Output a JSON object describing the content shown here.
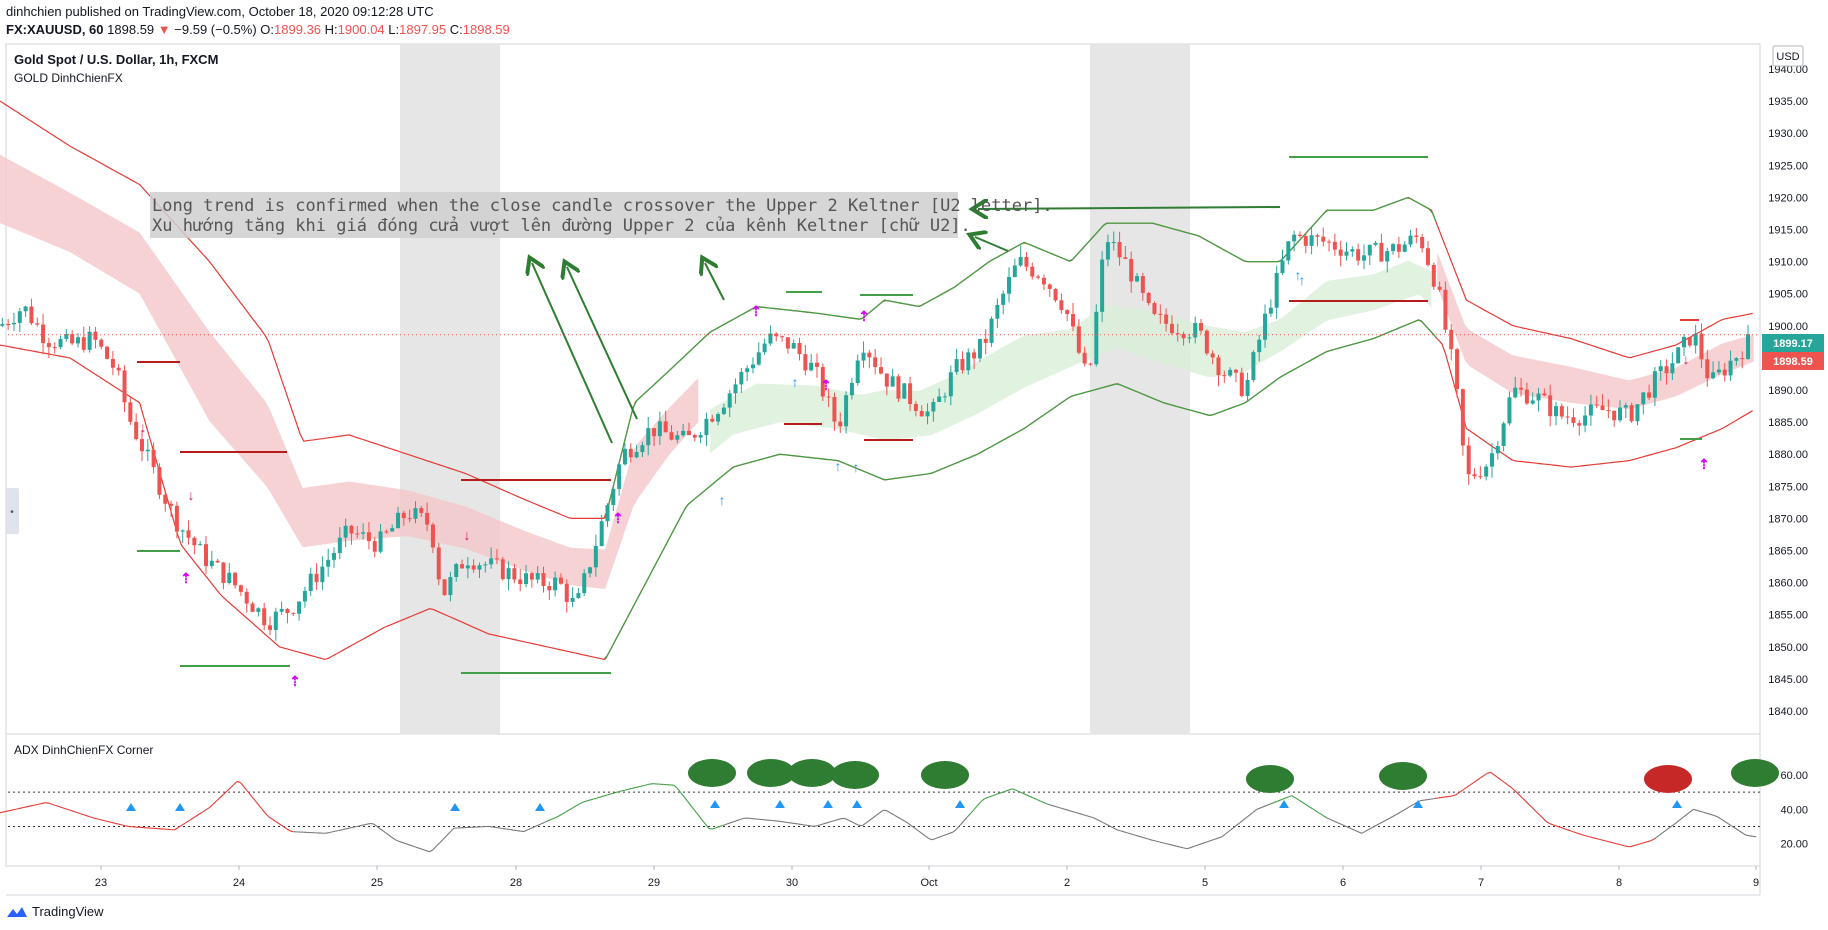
{
  "header": {
    "line1": "dinhchien published on TradingView.com, October 18, 2020 09:12:28 UTC",
    "symbol": "FX:XAUUSD, 60",
    "last": "1898.59",
    "change": "−9.59 (−0.5%)",
    "o_label": "O:",
    "o": "1899.36",
    "h_label": "H:",
    "h": "1900.04",
    "l_label": "L:",
    "l": "1897.95",
    "c_label": "C:",
    "c": "1898.59"
  },
  "main_pane": {
    "title": "Gold Spot / U.S. Dollar, 1h, FXCM",
    "indicator": "GOLD DinhChienFX",
    "currency": "USD",
    "annotation_line1": "Long trend is confirmed when the close candle crossover the Upper 2 Keltner [U2 letter].",
    "annotation_line2": "Xu hướng tăng khi giá đóng cửa vượt lên đường Upper 2 của kênh Keltner [chữ U2].",
    "price_badge_1": "1899.17",
    "price_badge_2": "1898.59"
  },
  "adx_pane": {
    "title": "ADX DinhChienFX Corner",
    "ticks": [
      "60.00",
      "40.00",
      "20.00"
    ]
  },
  "footer": {
    "brand": "TradingView"
  },
  "colors": {
    "up": "#26a69a",
    "down": "#ef5350",
    "band_red": "#e53935",
    "band_green": "#43a047",
    "fill_red": "#f4c7c9",
    "fill_green": "#d9efd9",
    "signal_buy": "#2196f3",
    "signal_exit": "#d500f9",
    "bubble_buy": "#2e7d32",
    "bubble_sell": "#c62828",
    "session": "#e6e6e6",
    "arrow": "#2e7d32"
  },
  "chart_data": [
    {
      "type": "candlestick",
      "title": "Gold Spot / U.S. Dollar, 1h, FXCM",
      "x_ticks": [
        "23",
        "24",
        "25",
        "28",
        "29",
        "30",
        "Oct",
        "2",
        "5",
        "6",
        "7",
        "8",
        "9"
      ],
      "y_ticks": [
        1940,
        1935,
        1930,
        1925,
        1920,
        1915,
        1910,
        1905,
        1900,
        1895,
        1890,
        1885,
        1880,
        1875,
        1870,
        1865,
        1860,
        1855,
        1850,
        1845,
        1840
      ],
      "ylim": [
        1838,
        1946
      ],
      "series": [
        {
          "name": "close",
          "keyframes": [
            [
              0,
              1900
            ],
            [
              20,
              1903
            ],
            [
              40,
              1898
            ],
            [
              60,
              1897
            ],
            [
              80,
              1898
            ],
            [
              100,
              1893
            ],
            [
              110,
              1886
            ],
            [
              125,
              1880
            ],
            [
              150,
              1870
            ],
            [
              175,
              1864
            ],
            [
              200,
              1860
            ],
            [
              230,
              1854
            ],
            [
              250,
              1856
            ],
            [
              275,
              1862
            ],
            [
              300,
              1868
            ],
            [
              325,
              1866
            ],
            [
              350,
              1871
            ],
            [
              370,
              1869
            ],
            [
              380,
              1858
            ],
            [
              400,
              1864
            ],
            [
              430,
              1862
            ],
            [
              460,
              1860
            ],
            [
              480,
              1860
            ],
            [
              495,
              1856
            ],
            [
              510,
              1865
            ],
            [
              535,
              1880
            ],
            [
              560,
              1884
            ],
            [
              590,
              1882
            ],
            [
              620,
              1888
            ],
            [
              640,
              1893
            ],
            [
              660,
              1898
            ],
            [
              680,
              1897
            ],
            [
              700,
              1893
            ],
            [
              720,
              1884
            ],
            [
              740,
              1898
            ],
            [
              760,
              1892
            ],
            [
              780,
              1889
            ],
            [
              800,
              1886
            ],
            [
              820,
              1893
            ],
            [
              845,
              1897
            ],
            [
              860,
              1904
            ],
            [
              875,
              1910
            ],
            [
              895,
              1908
            ],
            [
              915,
              1903
            ],
            [
              935,
              1891
            ],
            [
              950,
              1914
            ],
            [
              970,
              1909
            ],
            [
              990,
              1901
            ],
            [
              1010,
              1900
            ],
            [
              1030,
              1899
            ],
            [
              1050,
              1893
            ],
            [
              1070,
              1890
            ],
            [
              1090,
              1903
            ],
            [
              1110,
              1914
            ],
            [
              1140,
              1913
            ],
            [
              1170,
              1911
            ],
            [
              1200,
              1912
            ],
            [
              1220,
              1914
            ],
            [
              1235,
              1906
            ],
            [
              1250,
              1892
            ],
            [
              1260,
              1876
            ],
            [
              1280,
              1879
            ],
            [
              1300,
              1890
            ],
            [
              1320,
              1889
            ],
            [
              1340,
              1886
            ],
            [
              1360,
              1886
            ],
            [
              1380,
              1887
            ],
            [
              1400,
              1886
            ],
            [
              1420,
              1891
            ],
            [
              1440,
              1895
            ],
            [
              1455,
              1899
            ],
            [
              1470,
              1891
            ],
            [
              1490,
              1895
            ],
            [
              1505,
              1898
            ]
          ]
        },
        {
          "name": "upper",
          "keyframes": [
            [
              0,
              1935
            ],
            [
              60,
              1928
            ],
            [
              120,
              1922
            ],
            [
              180,
              1910
            ],
            [
              230,
              1898
            ],
            [
              260,
              1882
            ],
            [
              300,
              1883
            ],
            [
              350,
              1880
            ],
            [
              400,
              1877
            ],
            [
              450,
              1873
            ],
            [
              490,
              1870
            ],
            [
              520,
              1870
            ],
            [
              545,
              1888
            ],
            [
              575,
              1893
            ],
            [
              610,
              1899
            ],
            [
              650,
              1903
            ],
            [
              700,
              1902
            ],
            [
              740,
              1901
            ],
            [
              760,
              1904
            ],
            [
              790,
              1903
            ],
            [
              820,
              1906
            ],
            [
              850,
              1910
            ],
            [
              880,
              1913
            ],
            [
              920,
              1910
            ],
            [
              950,
              1916
            ],
            [
              990,
              1916
            ],
            [
              1030,
              1914
            ],
            [
              1070,
              1910
            ],
            [
              1100,
              1910
            ],
            [
              1140,
              1918
            ],
            [
              1180,
              1918
            ],
            [
              1210,
              1920
            ],
            [
              1230,
              1918
            ],
            [
              1260,
              1904
            ],
            [
              1300,
              1900
            ],
            [
              1350,
              1898
            ],
            [
              1400,
              1895
            ],
            [
              1440,
              1897
            ],
            [
              1480,
              1901
            ],
            [
              1508,
              1902
            ]
          ]
        },
        {
          "name": "lower",
          "keyframes": [
            [
              0,
              1897
            ],
            [
              60,
              1895
            ],
            [
              120,
              1888
            ],
            [
              155,
              1866
            ],
            [
              190,
              1858
            ],
            [
              240,
              1850
            ],
            [
              280,
              1848
            ],
            [
              330,
              1853
            ],
            [
              370,
              1856
            ],
            [
              420,
              1852
            ],
            [
              470,
              1850
            ],
            [
              520,
              1848
            ],
            [
              555,
              1860
            ],
            [
              590,
              1872
            ],
            [
              630,
              1878
            ],
            [
              670,
              1880
            ],
            [
              720,
              1879
            ],
            [
              760,
              1876
            ],
            [
              800,
              1877
            ],
            [
              840,
              1880
            ],
            [
              880,
              1884
            ],
            [
              920,
              1889
            ],
            [
              960,
              1891
            ],
            [
              1000,
              1888
            ],
            [
              1040,
              1886
            ],
            [
              1070,
              1888
            ],
            [
              1100,
              1892
            ],
            [
              1140,
              1896
            ],
            [
              1180,
              1898
            ],
            [
              1220,
              1901
            ],
            [
              1240,
              1897
            ],
            [
              1260,
              1884
            ],
            [
              1300,
              1879
            ],
            [
              1350,
              1878
            ],
            [
              1400,
              1879
            ],
            [
              1440,
              1881
            ],
            [
              1480,
              1884
            ],
            [
              1508,
              1887
            ]
          ]
        }
      ]
    },
    {
      "type": "line",
      "title": "ADX DinhChienFX Corner",
      "y_ticks": [
        60,
        40,
        20
      ],
      "ylim": [
        10,
        70
      ],
      "levels": [
        50,
        30
      ],
      "series": [
        {
          "name": "adx",
          "keyframes": [
            [
              0,
              38
            ],
            [
              40,
              44
            ],
            [
              80,
              35
            ],
            [
              110,
              30
            ],
            [
              150,
              28
            ],
            [
              180,
              41
            ],
            [
              205,
              57
            ],
            [
              230,
              36
            ],
            [
              250,
              27
            ],
            [
              280,
              26
            ],
            [
              320,
              32
            ],
            [
              340,
              22
            ],
            [
              370,
              15
            ],
            [
              390,
              29
            ],
            [
              420,
              30
            ],
            [
              450,
              27
            ],
            [
              480,
              36
            ],
            [
              500,
              44
            ],
            [
              530,
              50
            ],
            [
              560,
              55
            ],
            [
              580,
              54
            ],
            [
              610,
              28
            ],
            [
              640,
              35
            ],
            [
              670,
              33
            ],
            [
              700,
              30
            ],
            [
              725,
              35
            ],
            [
              740,
              30
            ],
            [
              760,
              40
            ],
            [
              780,
              32
            ],
            [
              800,
              22
            ],
            [
              820,
              27
            ],
            [
              845,
              46
            ],
            [
              870,
              52
            ],
            [
              900,
              43
            ],
            [
              940,
              35
            ],
            [
              960,
              28
            ],
            [
              990,
              22
            ],
            [
              1020,
              17
            ],
            [
              1050,
              24
            ],
            [
              1080,
              40
            ],
            [
              1110,
              48
            ],
            [
              1140,
              35
            ],
            [
              1170,
              26
            ],
            [
              1200,
              37
            ],
            [
              1220,
              45
            ],
            [
              1250,
              48
            ],
            [
              1280,
              62
            ],
            [
              1300,
              52
            ],
            [
              1330,
              32
            ],
            [
              1360,
              25
            ],
            [
              1400,
              18
            ],
            [
              1420,
              22
            ],
            [
              1440,
              32
            ],
            [
              1455,
              40
            ],
            [
              1475,
              36
            ],
            [
              1500,
              25
            ],
            [
              1508,
              24
            ]
          ]
        }
      ]
    }
  ]
}
